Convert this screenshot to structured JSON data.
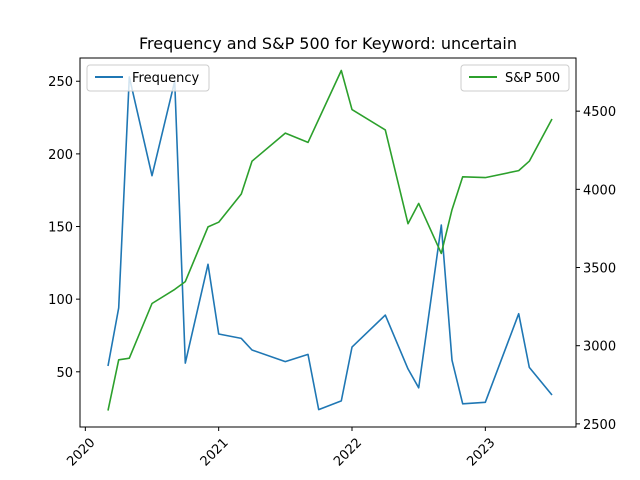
{
  "chart_data": {
    "type": "line",
    "title": "Frequency and S&P 500 for Keyword: uncertain",
    "xlabel": "",
    "x_ticks": [
      {
        "year": 2020.0,
        "label": "2020"
      },
      {
        "year": 2021.0,
        "label": "2021"
      },
      {
        "year": 2022.0,
        "label": "2022"
      },
      {
        "year": 2023.0,
        "label": "2023"
      }
    ],
    "xlim": [
      2019.96,
      2023.68
    ],
    "left_axis": {
      "ylim": [
        12,
        266
      ],
      "ticks": [
        50,
        100,
        150,
        200,
        250
      ],
      "tick_labels": [
        "50",
        "100",
        "150",
        "200",
        "250"
      ]
    },
    "right_axis": {
      "ylim": [
        2480,
        4840
      ],
      "ticks": [
        2500,
        3000,
        3500,
        4000,
        4500
      ],
      "tick_labels": [
        "2500",
        "3000",
        "3500",
        "4000",
        "4500"
      ]
    },
    "series": [
      {
        "name": "Frequency",
        "axis": "left",
        "color": "#1f77b4",
        "legend_position": "upper-left",
        "x": [
          2020.17,
          2020.25,
          2020.33,
          2020.5,
          2020.67,
          2020.75,
          2020.92,
          2021.0,
          2021.17,
          2021.25,
          2021.5,
          2021.67,
          2021.75,
          2021.92,
          2022.0,
          2022.25,
          2022.42,
          2022.5,
          2022.67,
          2022.75,
          2022.83,
          2023.0,
          2023.25,
          2023.33,
          2023.5
        ],
        "values": [
          54,
          94,
          253,
          185,
          250,
          56,
          124,
          76,
          73,
          65,
          57,
          62,
          24,
          30,
          67,
          89,
          52,
          39,
          151,
          58,
          28,
          29,
          90,
          53,
          34
        ]
      },
      {
        "name": "S&P 500",
        "axis": "right",
        "color": "#2ca02c",
        "legend_position": "upper-right",
        "x": [
          2020.17,
          2020.25,
          2020.33,
          2020.5,
          2020.67,
          2020.75,
          2020.92,
          2021.0,
          2021.17,
          2021.25,
          2021.5,
          2021.67,
          2021.92,
          2022.0,
          2022.25,
          2022.42,
          2022.5,
          2022.67,
          2022.75,
          2022.83,
          2023.0,
          2023.25,
          2023.33,
          2023.5
        ],
        "values": [
          2585,
          2910,
          2920,
          3270,
          3360,
          3410,
          3760,
          3790,
          3970,
          4180,
          4360,
          4300,
          4760,
          4510,
          4380,
          3780,
          3910,
          3590,
          3870,
          4080,
          4075,
          4120,
          4180,
          4450
        ]
      }
    ]
  }
}
